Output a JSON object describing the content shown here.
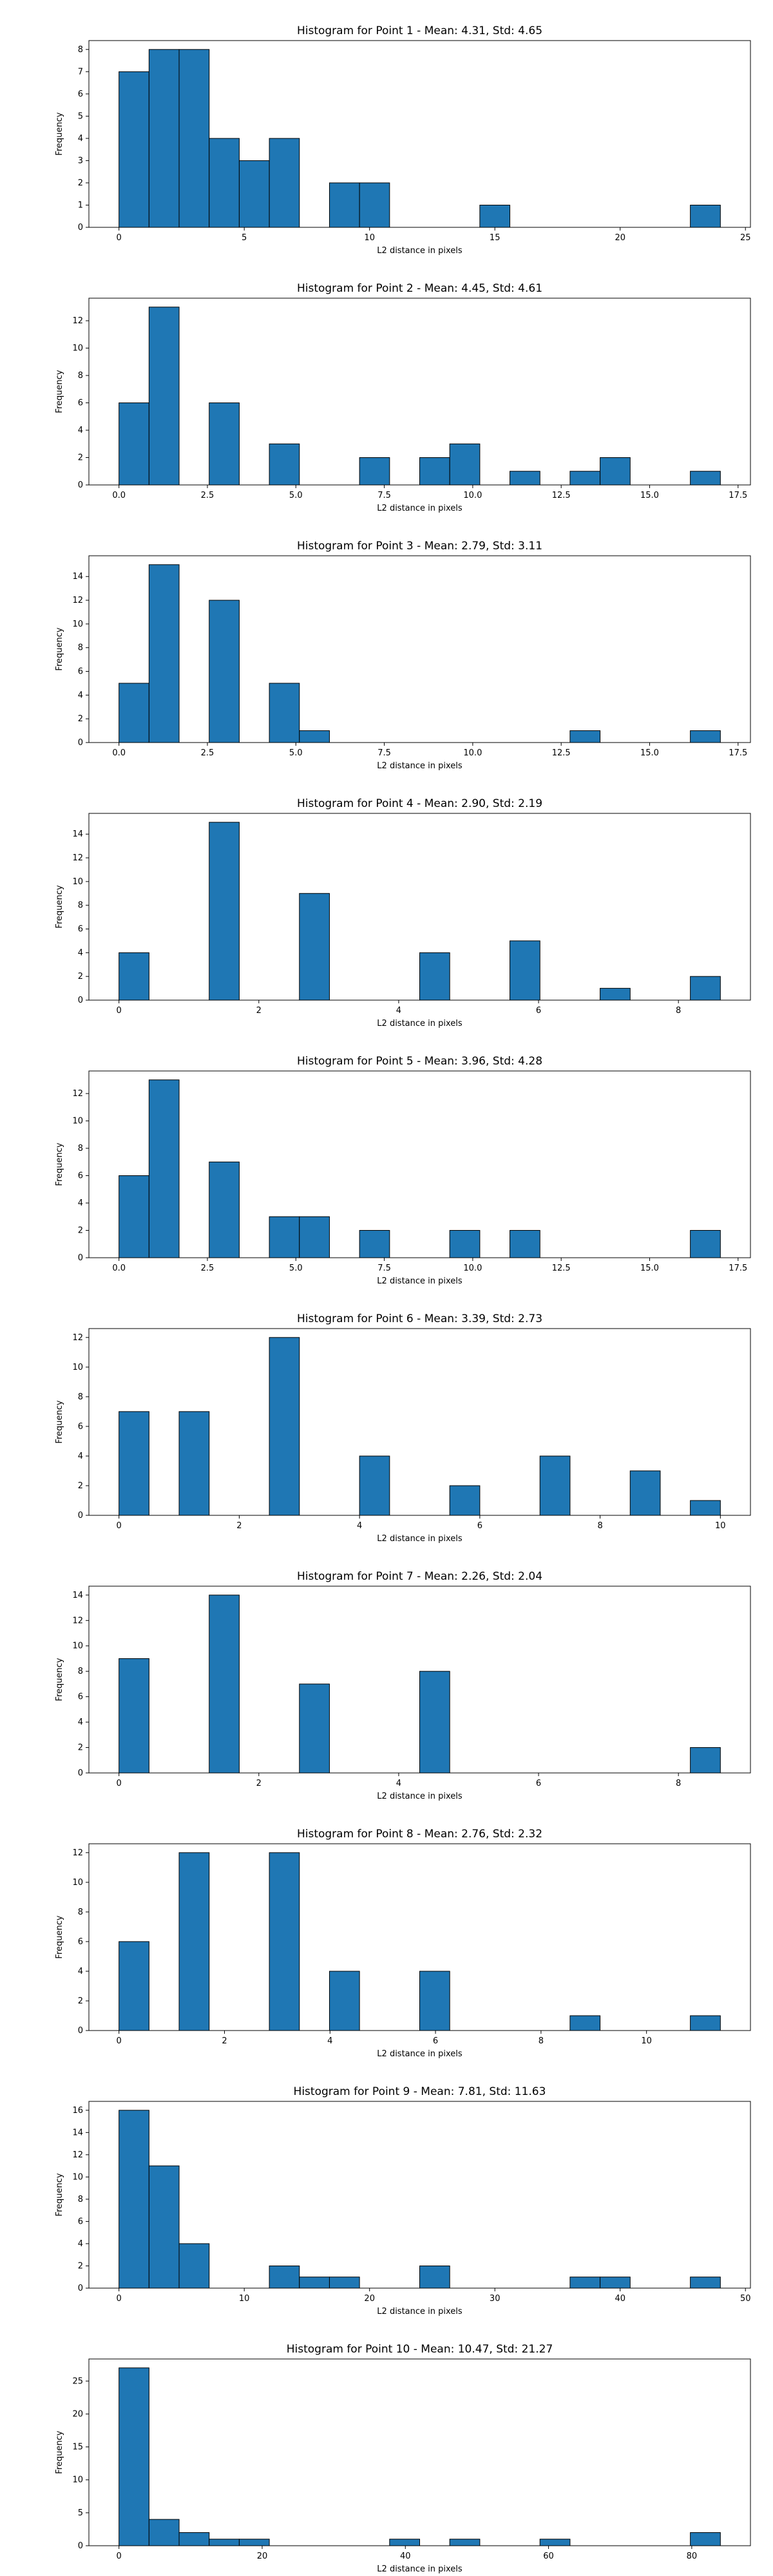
{
  "colors": {
    "bar": "#1f77b4",
    "edge": "#000000",
    "axis": "#000000"
  },
  "chart_data": [
    {
      "type": "bar",
      "title": "Histogram for Point 1 - Mean: 4.31, Std: 4.65",
      "xlabel": "L2 distance in pixels",
      "ylabel": "Frequency",
      "xlim": [
        -1.2,
        25.2
      ],
      "ylim": [
        0,
        8.4
      ],
      "xticks": [
        0,
        5,
        10,
        15,
        20,
        25
      ],
      "xtick_labels": [
        "0",
        "5",
        "10",
        "15",
        "20",
        "25"
      ],
      "yticks": [
        0,
        1,
        2,
        3,
        4,
        5,
        6,
        7,
        8
      ],
      "bin_edges": [
        0,
        1.2,
        2.4,
        3.6,
        4.8,
        6.0,
        7.2,
        8.4,
        9.6,
        10.8,
        12.0,
        13.2,
        14.4,
        15.6,
        16.8,
        18.0,
        19.2,
        20.4,
        21.6,
        22.8,
        24.0
      ],
      "values": [
        7,
        8,
        8,
        4,
        3,
        4,
        0,
        2,
        2,
        0,
        0,
        0,
        1,
        0,
        0,
        0,
        0,
        0,
        0,
        1
      ]
    },
    {
      "type": "bar",
      "title": "Histogram for Point 2 - Mean: 4.45, Std: 4.61",
      "xlabel": "L2 distance in pixels",
      "ylabel": "Frequency",
      "xlim": [
        -0.85,
        17.85
      ],
      "ylim": [
        0,
        13.65
      ],
      "xticks": [
        0,
        2.5,
        5,
        7.5,
        10,
        12.5,
        15,
        17.5
      ],
      "xtick_labels": [
        "0.0",
        "2.5",
        "5.0",
        "7.5",
        "10.0",
        "12.5",
        "15.0",
        "17.5"
      ],
      "yticks": [
        0,
        2,
        4,
        6,
        8,
        10,
        12
      ],
      "bin_edges": [
        0,
        0.85,
        1.7,
        2.55,
        3.4,
        4.25,
        5.1,
        5.95,
        6.8,
        7.65,
        8.5,
        9.35,
        10.2,
        11.05,
        11.9,
        12.75,
        13.6,
        14.45,
        15.3,
        16.15,
        17.0
      ],
      "values": [
        6,
        13,
        0,
        6,
        0,
        3,
        0,
        0,
        2,
        0,
        2,
        3,
        0,
        1,
        0,
        1,
        2,
        0,
        0,
        1
      ]
    },
    {
      "type": "bar",
      "title": "Histogram for Point 3 - Mean: 2.79, Std: 3.11",
      "xlabel": "L2 distance in pixels",
      "ylabel": "Frequency",
      "xlim": [
        -0.85,
        17.85
      ],
      "ylim": [
        0,
        15.75
      ],
      "xticks": [
        0,
        2.5,
        5,
        7.5,
        10,
        12.5,
        15,
        17.5
      ],
      "xtick_labels": [
        "0.0",
        "2.5",
        "5.0",
        "7.5",
        "10.0",
        "12.5",
        "15.0",
        "17.5"
      ],
      "yticks": [
        0,
        2,
        4,
        6,
        8,
        10,
        12,
        14
      ],
      "bin_edges": [
        0,
        0.85,
        1.7,
        2.55,
        3.4,
        4.25,
        5.1,
        5.95,
        6.8,
        7.65,
        8.5,
        9.35,
        10.2,
        11.05,
        11.9,
        12.75,
        13.6,
        14.45,
        15.3,
        16.15,
        17.0
      ],
      "values": [
        5,
        15,
        0,
        12,
        0,
        5,
        1,
        0,
        0,
        0,
        0,
        0,
        0,
        0,
        0,
        1,
        0,
        0,
        0,
        1
      ]
    },
    {
      "type": "bar",
      "title": "Histogram for Point 4 - Mean: 2.90, Std: 2.19",
      "xlabel": "L2 distance in pixels",
      "ylabel": "Frequency",
      "xlim": [
        -0.43,
        9.03
      ],
      "ylim": [
        0,
        15.75
      ],
      "xticks": [
        0,
        2,
        4,
        6,
        8
      ],
      "xtick_labels": [
        "0",
        "2",
        "4",
        "6",
        "8"
      ],
      "yticks": [
        0,
        2,
        4,
        6,
        8,
        10,
        12,
        14
      ],
      "bin_edges": [
        0,
        0.43,
        0.86,
        1.29,
        1.72,
        2.15,
        2.58,
        3.01,
        3.44,
        3.87,
        4.3,
        4.73,
        5.16,
        5.59,
        6.02,
        6.45,
        6.88,
        7.31,
        7.74,
        8.17,
        8.6
      ],
      "values": [
        4,
        0,
        0,
        15,
        0,
        0,
        9,
        0,
        0,
        0,
        4,
        0,
        0,
        5,
        0,
        0,
        1,
        0,
        0,
        2
      ]
    },
    {
      "type": "bar",
      "title": "Histogram for Point 5 - Mean: 3.96, Std: 4.28",
      "xlabel": "L2 distance in pixels",
      "ylabel": "Frequency",
      "xlim": [
        -0.85,
        17.85
      ],
      "ylim": [
        0,
        13.65
      ],
      "xticks": [
        0,
        2.5,
        5,
        7.5,
        10,
        12.5,
        15,
        17.5
      ],
      "xtick_labels": [
        "0.0",
        "2.5",
        "5.0",
        "7.5",
        "10.0",
        "12.5",
        "15.0",
        "17.5"
      ],
      "yticks": [
        0,
        2,
        4,
        6,
        8,
        10,
        12
      ],
      "bin_edges": [
        0,
        0.85,
        1.7,
        2.55,
        3.4,
        4.25,
        5.1,
        5.95,
        6.8,
        7.65,
        8.5,
        9.35,
        10.2,
        11.05,
        11.9,
        12.75,
        13.6,
        14.45,
        15.3,
        16.15,
        17.0
      ],
      "values": [
        6,
        13,
        0,
        7,
        0,
        3,
        3,
        0,
        2,
        0,
        0,
        2,
        0,
        2,
        0,
        0,
        0,
        0,
        0,
        2
      ]
    },
    {
      "type": "bar",
      "title": "Histogram for Point 6 - Mean: 3.39, Std: 2.73",
      "xlabel": "L2 distance in pixels",
      "ylabel": "Frequency",
      "xlim": [
        -0.5,
        10.5
      ],
      "ylim": [
        0,
        12.6
      ],
      "xticks": [
        0,
        2,
        4,
        6,
        8,
        10
      ],
      "xtick_labels": [
        "0",
        "2",
        "4",
        "6",
        "8",
        "10"
      ],
      "yticks": [
        0,
        2,
        4,
        6,
        8,
        10,
        12
      ],
      "bin_edges": [
        0,
        0.5,
        1.0,
        1.5,
        2.0,
        2.5,
        3.0,
        3.5,
        4.0,
        4.5,
        5.0,
        5.5,
        6.0,
        6.5,
        7.0,
        7.5,
        8.0,
        8.5,
        9.0,
        9.5,
        10.0
      ],
      "values": [
        7,
        0,
        7,
        0,
        0,
        12,
        0,
        0,
        4,
        0,
        0,
        2,
        0,
        0,
        4,
        0,
        0,
        3,
        0,
        1
      ]
    },
    {
      "type": "bar",
      "title": "Histogram for Point 7 - Mean: 2.26, Std: 2.04",
      "xlabel": "L2 distance in pixels",
      "ylabel": "Frequency",
      "xlim": [
        -0.43,
        9.03
      ],
      "ylim": [
        0,
        14.7
      ],
      "xticks": [
        0,
        2,
        4,
        6,
        8
      ],
      "xtick_labels": [
        "0",
        "2",
        "4",
        "6",
        "8"
      ],
      "yticks": [
        0,
        2,
        4,
        6,
        8,
        10,
        12,
        14
      ],
      "bin_edges": [
        0,
        0.43,
        0.86,
        1.29,
        1.72,
        2.15,
        2.58,
        3.01,
        3.44,
        3.87,
        4.3,
        4.73,
        5.16,
        5.59,
        6.02,
        6.45,
        6.88,
        7.31,
        7.74,
        8.17,
        8.6
      ],
      "values": [
        9,
        0,
        0,
        14,
        0,
        0,
        7,
        0,
        0,
        0,
        8,
        0,
        0,
        0,
        0,
        0,
        0,
        0,
        0,
        2
      ]
    },
    {
      "type": "bar",
      "title": "Histogram for Point 8 - Mean: 2.76, Std: 2.32",
      "xlabel": "L2 distance in pixels",
      "ylabel": "Frequency",
      "xlim": [
        -0.57,
        11.97
      ],
      "ylim": [
        0,
        12.6
      ],
      "xticks": [
        0,
        2,
        4,
        6,
        8,
        10
      ],
      "xtick_labels": [
        "0",
        "2",
        "4",
        "6",
        "8",
        "10"
      ],
      "yticks": [
        0,
        2,
        4,
        6,
        8,
        10,
        12
      ],
      "bin_edges": [
        0,
        0.57,
        1.14,
        1.71,
        2.28,
        2.85,
        3.42,
        3.99,
        4.56,
        5.13,
        5.7,
        6.27,
        6.84,
        7.41,
        7.98,
        8.55,
        9.12,
        9.69,
        10.26,
        10.83,
        11.4
      ],
      "values": [
        6,
        0,
        12,
        0,
        0,
        12,
        0,
        4,
        0,
        0,
        4,
        0,
        0,
        0,
        0,
        1,
        0,
        0,
        0,
        1
      ]
    },
    {
      "type": "bar",
      "title": "Histogram for Point 9 - Mean: 7.81, Std: 11.63",
      "xlabel": "L2 distance in pixels",
      "ylabel": "Frequency",
      "xlim": [
        -2.4,
        50.4
      ],
      "ylim": [
        0,
        16.8
      ],
      "xticks": [
        0,
        10,
        20,
        30,
        40,
        50
      ],
      "xtick_labels": [
        "0",
        "10",
        "20",
        "30",
        "40",
        "50"
      ],
      "yticks": [
        0,
        2,
        4,
        6,
        8,
        10,
        12,
        14,
        16
      ],
      "bin_edges": [
        0,
        2.4,
        4.8,
        7.2,
        9.6,
        12.0,
        14.4,
        16.8,
        19.2,
        21.6,
        24.0,
        26.4,
        28.8,
        31.2,
        33.6,
        36.0,
        38.4,
        40.8,
        43.2,
        45.6,
        48.0
      ],
      "values": [
        16,
        11,
        4,
        0,
        0,
        2,
        1,
        1,
        0,
        0,
        2,
        0,
        0,
        0,
        0,
        1,
        1,
        0,
        0,
        1
      ]
    },
    {
      "type": "bar",
      "title": "Histogram for Point 10 - Mean: 10.47, Std: 21.27",
      "xlabel": "L2 distance in pixels",
      "ylabel": "Frequency",
      "xlim": [
        -4.2,
        88.2
      ],
      "ylim": [
        0,
        28.35
      ],
      "xticks": [
        0,
        20,
        40,
        60,
        80
      ],
      "xtick_labels": [
        "0",
        "20",
        "40",
        "60",
        "80"
      ],
      "yticks": [
        0,
        5,
        10,
        15,
        20,
        25
      ],
      "bin_edges": [
        0,
        4.2,
        8.4,
        12.6,
        16.8,
        21.0,
        25.2,
        29.4,
        33.6,
        37.8,
        42.0,
        46.2,
        50.4,
        54.6,
        58.8,
        63.0,
        67.2,
        71.4,
        75.6,
        79.8,
        84.0
      ],
      "values": [
        27,
        4,
        2,
        1,
        1,
        0,
        0,
        0,
        0,
        1,
        0,
        1,
        0,
        0,
        1,
        0,
        0,
        0,
        0,
        2
      ]
    }
  ]
}
